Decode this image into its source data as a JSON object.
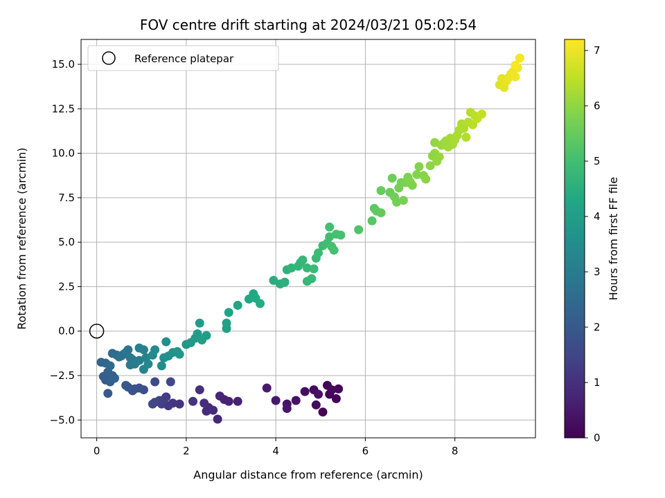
{
  "chart_data": {
    "type": "scatter",
    "title": "FOV centre drift starting at 2024/03/21 05:02:54",
    "xlabel": "Angular distance from reference (arcmin)",
    "ylabel": "Rotation from reference (arcmin)",
    "xlim": [
      -0.35,
      9.8
    ],
    "ylim": [
      -6.0,
      16.4
    ],
    "xticks": [
      0,
      2,
      4,
      6,
      8
    ],
    "xtick_labels": [
      "0",
      "2",
      "4",
      "6",
      "8"
    ],
    "yticks": [
      -5.0,
      -2.5,
      0.0,
      2.5,
      5.0,
      7.5,
      10.0,
      12.5,
      15.0
    ],
    "ytick_labels": [
      "−5.0",
      "−2.5",
      "0.0",
      "2.5",
      "5.0",
      "7.5",
      "10.0",
      "12.5",
      "15.0"
    ],
    "grid": true,
    "legend": {
      "position": "top-left",
      "entries": [
        {
          "label": "Reference platepar",
          "marker": "open-circle"
        }
      ]
    },
    "reference_point": {
      "x": 0,
      "y": 0
    },
    "colorbar": {
      "label": "Hours from first FF file",
      "min": 0,
      "max": 7.2,
      "ticks": [
        0,
        1,
        2,
        3,
        4,
        5,
        6,
        7
      ],
      "tick_labels": [
        "0",
        "1",
        "2",
        "3",
        "4",
        "5",
        "6",
        "7"
      ],
      "colormap": "viridis"
    },
    "series": [
      {
        "color_by": "hours",
        "points": [
          [
            5.05,
            -4.55,
            0.02
          ],
          [
            5.35,
            -3.8,
            0.05
          ],
          [
            5.2,
            -3.55,
            0.08
          ],
          [
            5.4,
            -3.25,
            0.1
          ],
          [
            5.15,
            -3.05,
            0.12
          ],
          [
            5.25,
            -3.3,
            0.15
          ],
          [
            4.9,
            -4.15,
            0.2
          ],
          [
            4.85,
            -3.3,
            0.22
          ],
          [
            4.65,
            -3.4,
            0.25
          ],
          [
            4.95,
            -3.55,
            0.3
          ],
          [
            4.45,
            -3.9,
            0.35
          ],
          [
            4.25,
            -4.1,
            0.4
          ],
          [
            4.25,
            -4.35,
            0.45
          ],
          [
            4.0,
            -3.9,
            0.5
          ],
          [
            3.8,
            -3.2,
            0.55
          ],
          [
            3.15,
            -3.95,
            0.65
          ],
          [
            2.95,
            -3.95,
            0.7
          ],
          [
            2.85,
            -3.85,
            0.72
          ],
          [
            2.75,
            -3.65,
            0.75
          ],
          [
            2.7,
            -4.95,
            0.8
          ],
          [
            2.6,
            -4.45,
            0.85
          ],
          [
            2.5,
            -4.3,
            0.88
          ],
          [
            2.45,
            -4.5,
            0.9
          ],
          [
            2.4,
            -4.05,
            0.95
          ],
          [
            2.3,
            -3.3,
            1.0
          ],
          [
            2.15,
            -3.95,
            1.05
          ],
          [
            1.85,
            -4.1,
            1.1
          ],
          [
            1.7,
            -4.05,
            1.15
          ],
          [
            1.6,
            -4.2,
            1.2
          ],
          [
            1.55,
            -3.7,
            1.25
          ],
          [
            1.5,
            -3.85,
            1.3
          ],
          [
            1.45,
            -4.1,
            1.35
          ],
          [
            1.4,
            -3.9,
            1.4
          ],
          [
            1.3,
            -4.0,
            1.45
          ],
          [
            1.25,
            -4.1,
            1.5
          ],
          [
            1.65,
            -2.85,
            1.55
          ],
          [
            1.3,
            -2.85,
            1.6
          ],
          [
            1.05,
            -3.3,
            1.7
          ],
          [
            0.95,
            -3.2,
            1.75
          ],
          [
            0.85,
            -3.25,
            1.8
          ],
          [
            0.8,
            -3.35,
            1.85
          ],
          [
            0.7,
            -3.15,
            1.9
          ],
          [
            0.65,
            -3.05,
            1.95
          ],
          [
            0.25,
            -3.5,
            2.0
          ],
          [
            0.2,
            -2.75,
            2.05
          ],
          [
            0.15,
            -2.55,
            2.1
          ],
          [
            0.25,
            -2.3,
            2.15
          ],
          [
            0.3,
            -2.85,
            2.2
          ],
          [
            0.35,
            -2.5,
            2.25
          ],
          [
            0.4,
            -2.65,
            2.3
          ],
          [
            0.1,
            -1.75,
            2.35
          ],
          [
            0.2,
            -1.8,
            2.4
          ],
          [
            0.3,
            -1.95,
            2.45
          ],
          [
            0.35,
            -1.25,
            2.5
          ],
          [
            0.45,
            -1.35,
            2.55
          ],
          [
            0.5,
            -1.45,
            2.6
          ],
          [
            0.55,
            -1.4,
            2.65
          ],
          [
            0.6,
            -1.3,
            2.7
          ],
          [
            0.65,
            -1.2,
            2.75
          ],
          [
            0.7,
            -1.05,
            2.8
          ],
          [
            0.75,
            -1.5,
            2.85
          ],
          [
            0.8,
            -1.6,
            2.9
          ],
          [
            0.75,
            -1.9,
            2.95
          ],
          [
            0.85,
            -1.85,
            3.0
          ],
          [
            0.95,
            -1.65,
            3.05
          ],
          [
            0.95,
            -0.95,
            3.1
          ],
          [
            1.05,
            -1.05,
            3.15
          ],
          [
            1.1,
            -1.5,
            3.2
          ],
          [
            1.05,
            -2.15,
            3.25
          ],
          [
            1.15,
            -1.85,
            3.3
          ],
          [
            1.25,
            -1.35,
            3.35
          ],
          [
            1.3,
            -1.05,
            3.4
          ],
          [
            1.45,
            -1.95,
            3.45
          ],
          [
            1.5,
            -1.5,
            3.5
          ],
          [
            1.55,
            -0.6,
            3.55
          ],
          [
            1.6,
            -1.4,
            3.6
          ],
          [
            1.7,
            -1.2,
            3.65
          ],
          [
            1.8,
            -1.15,
            3.7
          ],
          [
            1.85,
            -1.3,
            3.75
          ],
          [
            2.0,
            -0.75,
            3.8
          ],
          [
            2.1,
            -0.65,
            3.85
          ],
          [
            2.2,
            -0.4,
            3.88
          ],
          [
            2.25,
            -0.15,
            3.92
          ],
          [
            2.3,
            0.45,
            3.95
          ],
          [
            2.35,
            -0.5,
            3.98
          ],
          [
            2.45,
            -0.25,
            4.0
          ],
          [
            2.9,
            0.15,
            4.05
          ],
          [
            2.9,
            0.45,
            4.1
          ],
          [
            2.95,
            1.05,
            4.15
          ],
          [
            3.15,
            1.45,
            4.2
          ],
          [
            3.4,
            1.8,
            4.25
          ],
          [
            3.5,
            2.1,
            4.3
          ],
          [
            3.55,
            1.85,
            4.35
          ],
          [
            3.65,
            1.55,
            4.4
          ],
          [
            3.95,
            2.85,
            4.45
          ],
          [
            4.1,
            2.65,
            4.5
          ],
          [
            4.2,
            2.75,
            4.55
          ],
          [
            4.25,
            3.45,
            4.6
          ],
          [
            4.35,
            3.55,
            4.65
          ],
          [
            4.5,
            3.65,
            4.7
          ],
          [
            4.55,
            3.85,
            4.72
          ],
          [
            4.6,
            4.0,
            4.75
          ],
          [
            4.7,
            3.55,
            4.78
          ],
          [
            4.7,
            2.8,
            4.8
          ],
          [
            4.8,
            2.95,
            4.82
          ],
          [
            4.85,
            3.5,
            4.85
          ],
          [
            4.9,
            4.1,
            4.88
          ],
          [
            4.95,
            4.4,
            4.9
          ],
          [
            5.05,
            4.8,
            4.92
          ],
          [
            5.15,
            4.95,
            4.95
          ],
          [
            5.2,
            5.3,
            4.98
          ],
          [
            5.2,
            5.85,
            5.0
          ],
          [
            5.25,
            4.75,
            5.03
          ],
          [
            5.3,
            4.55,
            5.05
          ],
          [
            5.35,
            5.45,
            5.08
          ],
          [
            5.45,
            5.4,
            5.1
          ],
          [
            5.85,
            5.7,
            5.2
          ],
          [
            6.15,
            6.2,
            5.3
          ],
          [
            6.2,
            6.9,
            5.35
          ],
          [
            6.25,
            6.75,
            5.4
          ],
          [
            6.35,
            6.65,
            5.45
          ],
          [
            6.35,
            7.9,
            5.5
          ],
          [
            6.55,
            7.8,
            5.55
          ],
          [
            6.6,
            8.6,
            5.6
          ],
          [
            6.65,
            7.55,
            5.62
          ],
          [
            6.7,
            7.25,
            5.65
          ],
          [
            6.75,
            8.05,
            5.68
          ],
          [
            6.8,
            8.35,
            5.7
          ],
          [
            6.85,
            7.35,
            5.72
          ],
          [
            6.9,
            8.35,
            5.75
          ],
          [
            6.95,
            8.65,
            5.78
          ],
          [
            7.0,
            8.4,
            5.8
          ],
          [
            7.05,
            8.2,
            5.82
          ],
          [
            7.15,
            8.8,
            5.85
          ],
          [
            7.2,
            9.25,
            5.87
          ],
          [
            7.3,
            8.75,
            5.9
          ],
          [
            7.35,
            8.55,
            5.92
          ],
          [
            7.45,
            9.3,
            5.95
          ],
          [
            7.5,
            9.85,
            5.97
          ],
          [
            7.55,
            10.0,
            6.0
          ],
          [
            7.55,
            10.6,
            6.02
          ],
          [
            7.6,
            9.55,
            6.05
          ],
          [
            7.65,
            9.8,
            6.07
          ],
          [
            7.7,
            10.45,
            6.1
          ],
          [
            7.75,
            10.55,
            6.12
          ],
          [
            7.8,
            10.7,
            6.15
          ],
          [
            7.85,
            10.35,
            6.17
          ],
          [
            7.9,
            10.85,
            6.2
          ],
          [
            7.95,
            10.5,
            6.22
          ],
          [
            8.0,
            10.75,
            6.25
          ],
          [
            8.05,
            11.0,
            6.27
          ],
          [
            8.1,
            11.3,
            6.3
          ],
          [
            8.15,
            11.65,
            6.32
          ],
          [
            8.2,
            11.4,
            6.35
          ],
          [
            8.25,
            10.9,
            6.37
          ],
          [
            8.3,
            11.75,
            6.4
          ],
          [
            8.35,
            12.3,
            6.42
          ],
          [
            8.4,
            11.6,
            6.45
          ],
          [
            8.45,
            12.1,
            6.47
          ],
          [
            8.5,
            11.95,
            6.5
          ],
          [
            8.6,
            12.2,
            6.55
          ],
          [
            9.0,
            13.85,
            6.85
          ],
          [
            9.05,
            14.2,
            6.9
          ],
          [
            9.1,
            13.7,
            6.92
          ],
          [
            9.15,
            14.05,
            6.95
          ],
          [
            9.2,
            14.25,
            6.98
          ],
          [
            9.25,
            14.45,
            7.0
          ],
          [
            9.3,
            14.6,
            7.02
          ],
          [
            9.35,
            14.3,
            7.05
          ],
          [
            9.4,
            14.8,
            7.08
          ],
          [
            9.45,
            15.35,
            7.12
          ],
          [
            9.35,
            14.95,
            7.15
          ]
        ]
      }
    ]
  }
}
